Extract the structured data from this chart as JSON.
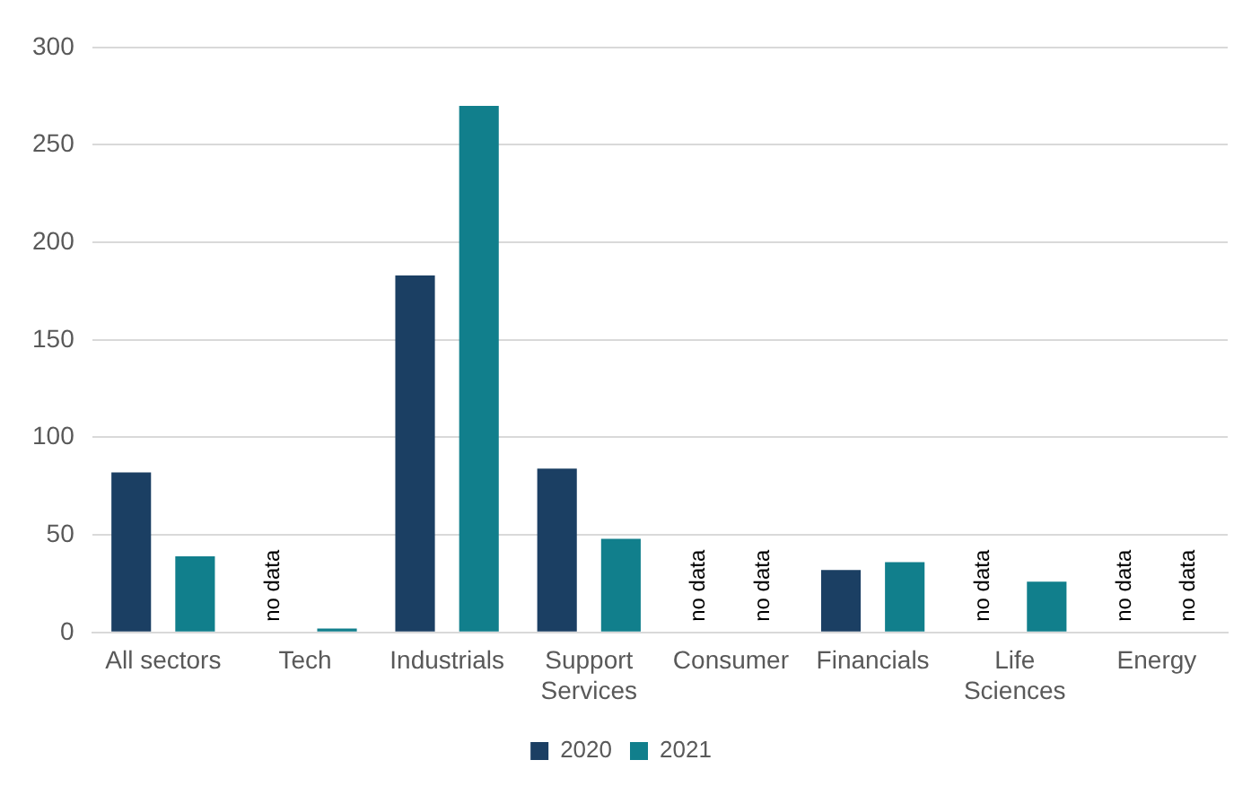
{
  "chart_data": {
    "type": "bar",
    "categories": [
      "All sectors",
      "Tech",
      "Industrials",
      "Support Services",
      "Consumer",
      "Financials",
      "Life Sciences",
      "Energy"
    ],
    "series": [
      {
        "name": "2020",
        "color": "#1b3f63",
        "values": [
          82,
          null,
          183,
          84,
          null,
          32,
          null,
          null
        ]
      },
      {
        "name": "2021",
        "color": "#117f8c",
        "values": [
          39,
          2,
          270,
          48,
          null,
          36,
          26,
          null
        ]
      }
    ],
    "ylim": [
      0,
      300
    ],
    "yticks": [
      0,
      50,
      100,
      150,
      200,
      250,
      300
    ],
    "grid": "y",
    "legend": "bottom",
    "annotations": [
      "no data",
      "no data",
      "no data",
      "no data",
      "no data",
      "no data"
    ]
  }
}
